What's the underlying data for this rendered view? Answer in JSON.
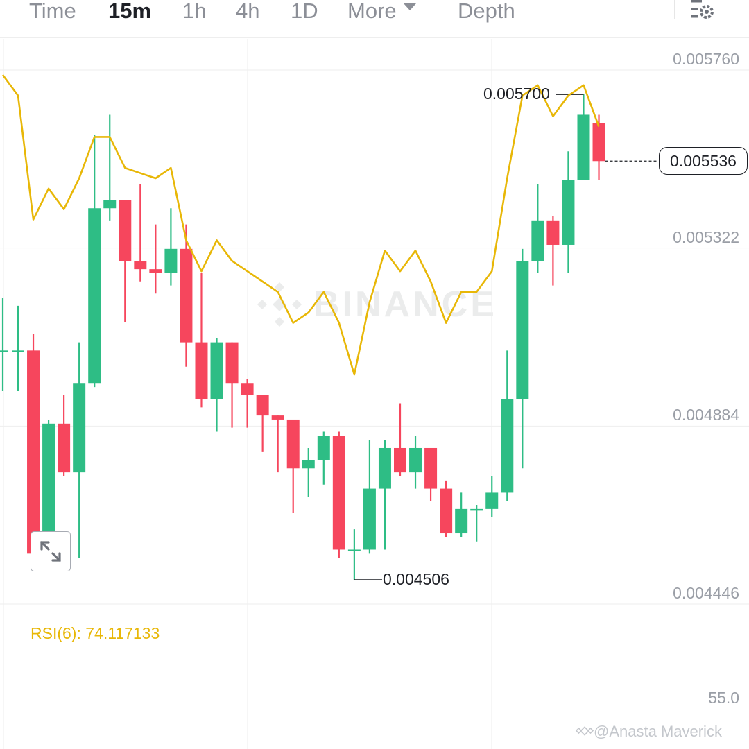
{
  "tabs": {
    "time": "Time",
    "m15": "15m",
    "h1": "1h",
    "h4": "4h",
    "d1": "1D",
    "more": "More",
    "depth": "Depth"
  },
  "active_tab": "15m",
  "icons": {
    "settings": "chart-settings-icon",
    "expand": "expand-icon",
    "watermark": "binance-logo-icon",
    "credit": "binance-logo-small-icon"
  },
  "colors": {
    "up": "#2ebd85",
    "down": "#f6465d",
    "rsi": "#e8b707",
    "grid": "#eeeeee"
  },
  "price_axis": {
    "labels": [
      "0.005760",
      "0.005322",
      "0.004884",
      "0.004446"
    ]
  },
  "last_price": "0.005536",
  "high_label": "0.005700",
  "low_label": "0.004506",
  "rsi": {
    "label": "RSI(6): 74.117133",
    "level": "55.0"
  },
  "watermark_text": "BINANCE",
  "credit_text": "@Anasta Maverick",
  "chart_data": {
    "type": "candlestick",
    "interval": "15m",
    "y_range": [
      0.004446,
      0.00576
    ],
    "candles": [
      {
        "o": 0.00507,
        "c": 0.00507,
        "h": 0.0052,
        "l": 0.00497
      },
      {
        "o": 0.00507,
        "c": 0.00507,
        "h": 0.00518,
        "l": 0.00497
      },
      {
        "o": 0.00507,
        "c": 0.00457,
        "h": 0.00511,
        "l": 0.00456
      },
      {
        "o": 0.00457,
        "c": 0.00489,
        "h": 0.0049,
        "l": 0.00456
      },
      {
        "o": 0.00489,
        "c": 0.00477,
        "h": 0.00496,
        "l": 0.00476
      },
      {
        "o": 0.00477,
        "c": 0.00499,
        "h": 0.00509,
        "l": 0.00456
      },
      {
        "o": 0.00499,
        "c": 0.00542,
        "h": 0.0056,
        "l": 0.00498
      },
      {
        "o": 0.00542,
        "c": 0.00544,
        "h": 0.00565,
        "l": 0.00539
      },
      {
        "o": 0.00544,
        "c": 0.00529,
        "h": 0.00544,
        "l": 0.00514
      },
      {
        "o": 0.00529,
        "c": 0.00527,
        "h": 0.00548,
        "l": 0.00524
      },
      {
        "o": 0.00527,
        "c": 0.00526,
        "h": 0.00538,
        "l": 0.00521
      },
      {
        "o": 0.00526,
        "c": 0.00532,
        "h": 0.00542,
        "l": 0.00523
      },
      {
        "o": 0.00532,
        "c": 0.00509,
        "h": 0.00538,
        "l": 0.00503
      },
      {
        "o": 0.00509,
        "c": 0.00495,
        "h": 0.00526,
        "l": 0.00493
      },
      {
        "o": 0.00495,
        "c": 0.00509,
        "h": 0.0051,
        "l": 0.00487
      },
      {
        "o": 0.00509,
        "c": 0.00499,
        "h": 0.00509,
        "l": 0.00488
      },
      {
        "o": 0.00499,
        "c": 0.00496,
        "h": 0.005,
        "l": 0.00488
      },
      {
        "o": 0.00496,
        "c": 0.00491,
        "h": 0.00496,
        "l": 0.00482
      },
      {
        "o": 0.00491,
        "c": 0.0049,
        "h": 0.00491,
        "l": 0.00477
      },
      {
        "o": 0.0049,
        "c": 0.00478,
        "h": 0.00489,
        "l": 0.00467
      },
      {
        "o": 0.00478,
        "c": 0.0048,
        "h": 0.00483,
        "l": 0.00471
      },
      {
        "o": 0.0048,
        "c": 0.00486,
        "h": 0.00487,
        "l": 0.00474
      },
      {
        "o": 0.00486,
        "c": 0.00458,
        "h": 0.00487,
        "l": 0.00456
      },
      {
        "o": 0.00458,
        "c": 0.00458,
        "h": 0.00463,
        "l": 0.004506
      },
      {
        "o": 0.00458,
        "c": 0.00473,
        "h": 0.00485,
        "l": 0.00457
      },
      {
        "o": 0.00473,
        "c": 0.00483,
        "h": 0.00485,
        "l": 0.00458
      },
      {
        "o": 0.00483,
        "c": 0.00477,
        "h": 0.00494,
        "l": 0.00476
      },
      {
        "o": 0.00477,
        "c": 0.00483,
        "h": 0.00486,
        "l": 0.00473
      },
      {
        "o": 0.00483,
        "c": 0.00473,
        "h": 0.00483,
        "l": 0.0047
      },
      {
        "o": 0.00473,
        "c": 0.00462,
        "h": 0.00475,
        "l": 0.00461
      },
      {
        "o": 0.00462,
        "c": 0.00468,
        "h": 0.00472,
        "l": 0.00461
      },
      {
        "o": 0.00468,
        "c": 0.00468,
        "h": 0.00469,
        "l": 0.0046
      },
      {
        "o": 0.00468,
        "c": 0.00472,
        "h": 0.00476,
        "l": 0.00466
      },
      {
        "o": 0.00472,
        "c": 0.00495,
        "h": 0.00507,
        "l": 0.0047
      },
      {
        "o": 0.00495,
        "c": 0.00529,
        "h": 0.00532,
        "l": 0.00478
      },
      {
        "o": 0.00529,
        "c": 0.00539,
        "h": 0.00548,
        "l": 0.00526
      },
      {
        "o": 0.00539,
        "c": 0.00533,
        "h": 0.0054,
        "l": 0.00523
      },
      {
        "o": 0.00533,
        "c": 0.00549,
        "h": 0.00556,
        "l": 0.00526
      },
      {
        "o": 0.00549,
        "c": 0.00565,
        "h": 0.0057,
        "l": 0.00549
      },
      {
        "o": 0.00563,
        "c": 0.005536,
        "h": 0.00565,
        "l": 0.00549
      }
    ],
    "rsi_series": [
      80,
      78,
      66,
      69,
      67,
      70,
      74,
      74,
      71,
      70.5,
      70,
      71,
      64,
      61,
      64,
      62,
      61,
      60,
      59,
      56,
      57,
      59,
      56,
      51,
      58,
      63,
      61,
      63,
      60,
      56,
      59,
      59,
      61,
      70,
      78,
      79,
      76,
      78,
      79,
      75
    ],
    "rsi_level": 55.0,
    "annotations": [
      {
        "text": "0.005700",
        "value": 0.0057
      },
      {
        "text": "0.004506",
        "value": 0.004506
      },
      {
        "text": "0.005536",
        "value": 0.005536
      }
    ]
  }
}
